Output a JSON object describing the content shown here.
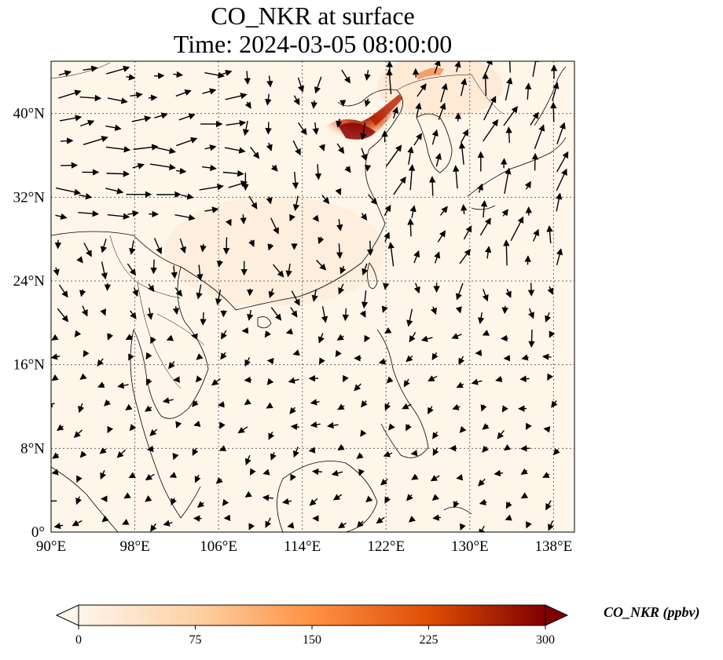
{
  "title": {
    "line1": "CO_NKR at surface",
    "line2": "Time: 2024-03-05 08:00:00"
  },
  "map": {
    "extent": {
      "lon_min": 90,
      "lon_max": 140,
      "lat_min": 0,
      "lat_max": 45
    },
    "x_ticks": [
      {
        "lon": 90,
        "label": "90°E"
      },
      {
        "lon": 98,
        "label": "98°E"
      },
      {
        "lon": 106,
        "label": "106°E"
      },
      {
        "lon": 114,
        "label": "114°E"
      },
      {
        "lon": 122,
        "label": "122°E"
      },
      {
        "lon": 130,
        "label": "130°E"
      },
      {
        "lon": 138,
        "label": "138°E"
      }
    ],
    "y_ticks": [
      {
        "lat": 0,
        "label": "0°"
      },
      {
        "lat": 8,
        "label": "8°N"
      },
      {
        "lat": 16,
        "label": "16°N"
      },
      {
        "lat": 24,
        "label": "24°N"
      },
      {
        "lat": 32,
        "label": "32°N"
      },
      {
        "lat": 40,
        "label": "40°N"
      }
    ],
    "gridlines": true,
    "background_color": "#fff6ea",
    "plume": {
      "description_color_high": "#7a0000",
      "peak_value_ppbv": 300,
      "center": {
        "lon": 119,
        "lat": 38
      }
    }
  },
  "colorbar": {
    "label": "CO_NKR (ppbv)",
    "min": 0,
    "max": 300,
    "ticks": [
      0,
      75,
      150,
      225,
      300
    ],
    "colors": [
      "#fff5eb",
      "#fdd1a5",
      "#fd9243",
      "#de4e05",
      "#7f0000"
    ],
    "extend": "both"
  }
}
